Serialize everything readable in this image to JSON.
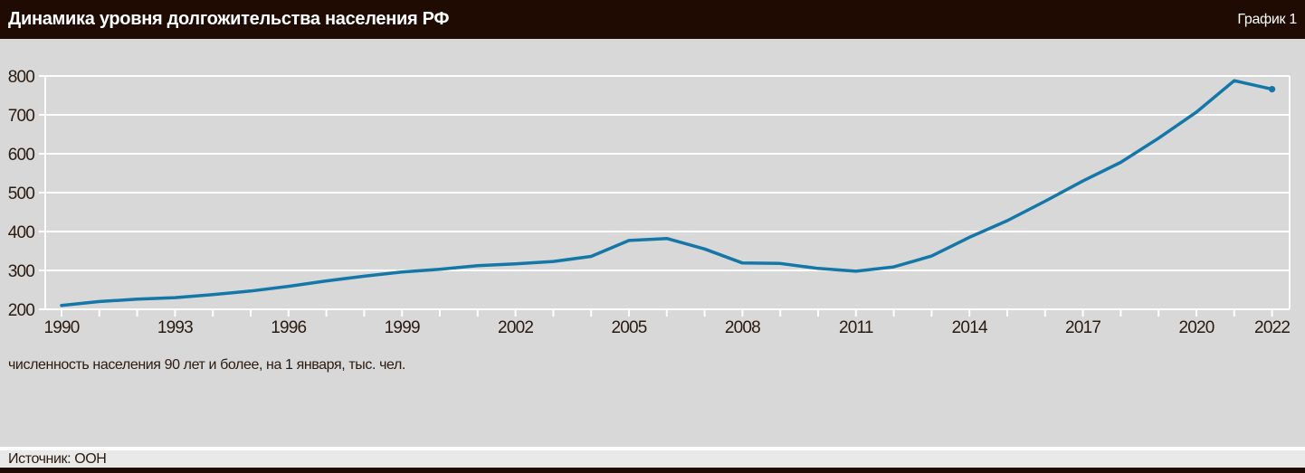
{
  "header": {
    "title": "Динамика уровня долгожительства населения РФ",
    "figure_label": "График 1"
  },
  "chart_data": {
    "type": "line",
    "title": "Динамика уровня долгожительства населения РФ",
    "subtitle": "численность населения 90 лет и более, на 1 января, тыс. чел.",
    "x": [
      1990,
      1991,
      1992,
      1993,
      1994,
      1995,
      1996,
      1997,
      1998,
      1999,
      2000,
      2001,
      2002,
      2003,
      2004,
      2005,
      2006,
      2007,
      2008,
      2009,
      2010,
      2011,
      2012,
      2013,
      2014,
      2015,
      2016,
      2017,
      2018,
      2019,
      2020,
      2021,
      2022
    ],
    "values": [
      210,
      220,
      226,
      230,
      238,
      247,
      259,
      273,
      285,
      296,
      303,
      312,
      317,
      323,
      336,
      377,
      382,
      355,
      319,
      318,
      305,
      298,
      309,
      337,
      385,
      428,
      478,
      530,
      578,
      640,
      707,
      788,
      766
    ],
    "series_name": "численность населения 90 лет и более",
    "ylim": [
      200,
      800
    ],
    "yticks": [
      200,
      300,
      400,
      500,
      600,
      700,
      800
    ],
    "xtick_labels": [
      1990,
      1993,
      1996,
      1999,
      2002,
      2005,
      2008,
      2011,
      2014,
      2017,
      2020,
      2022
    ],
    "grid": "horizontal-white",
    "legend": "none",
    "line_color": "#1477a7",
    "plot_bg_color": "#d8d8d8",
    "grid_color": "#ffffff",
    "text_color": "#2a1b11",
    "end_point_marker": true
  },
  "footer": {
    "source_label": "Источник: ООН"
  }
}
